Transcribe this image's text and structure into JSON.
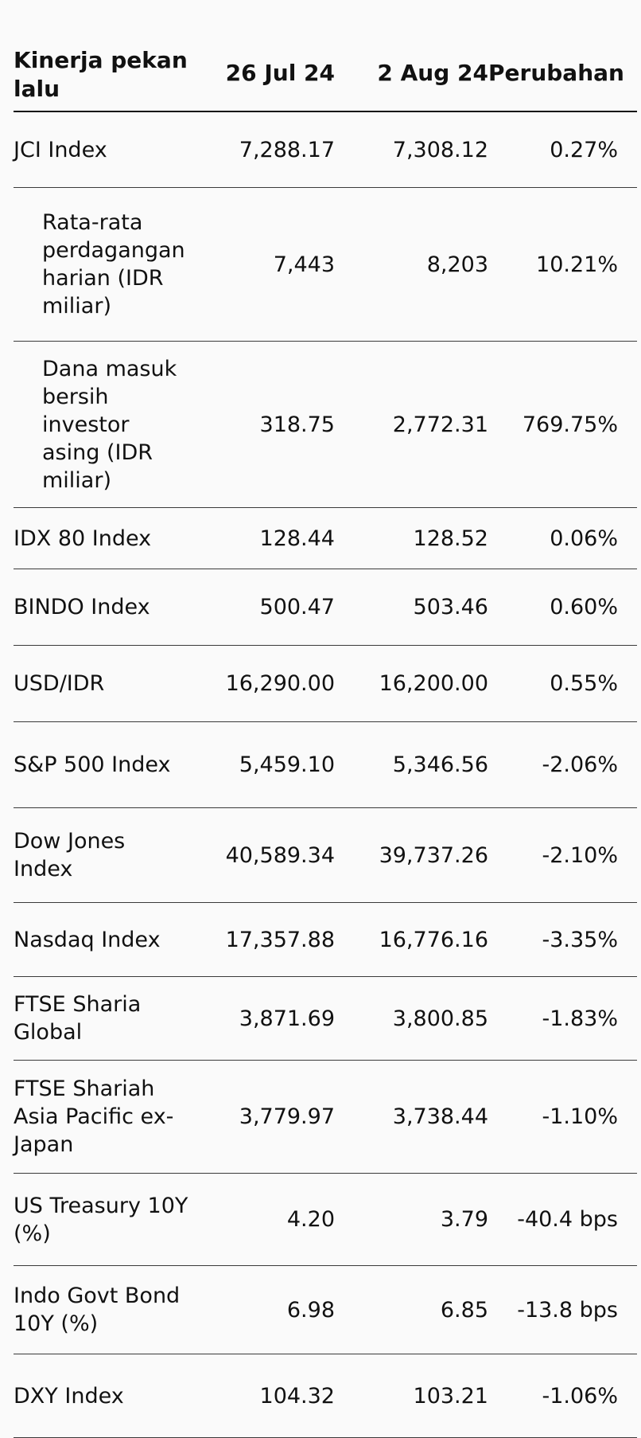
{
  "table": {
    "headers": {
      "label": "Kinerja pekan lalu",
      "date1": "26 Jul 24",
      "date2": "2 Aug 24",
      "change": "Perubahan"
    },
    "rows": [
      {
        "label": "JCI Index",
        "v1": "7,288.17",
        "v2": "7,308.12",
        "change": "0.27%",
        "indent": false
      },
      {
        "label": "Rata-rata perdagangan harian (IDR miliar)",
        "v1": "7,443",
        "v2": "8,203",
        "change": "10.21%",
        "indent": true
      },
      {
        "label": "Dana masuk bersih investor asing (IDR miliar)",
        "v1": "318.75",
        "v2": "2,772.31",
        "change": "769.75%",
        "indent": true
      },
      {
        "label": "IDX 80 Index",
        "v1": "128.44",
        "v2": "128.52",
        "change": "0.06%",
        "indent": false
      },
      {
        "label": "BINDO Index",
        "v1": "500.47",
        "v2": "503.46",
        "change": "0.60%",
        "indent": false
      },
      {
        "label": "USD/IDR",
        "v1": "16,290.00",
        "v2": "16,200.00",
        "change": "0.55%",
        "indent": false
      },
      {
        "label": "S&P 500 Index",
        "v1": "5,459.10",
        "v2": "5,346.56",
        "change": "-2.06%",
        "indent": false
      },
      {
        "label": "Dow Jones Index",
        "v1": "40,589.34",
        "v2": "39,737.26",
        "change": "-2.10%",
        "indent": false
      },
      {
        "label": "Nasdaq Index",
        "v1": "17,357.88",
        "v2": "16,776.16",
        "change": "-3.35%",
        "indent": false
      },
      {
        "label": "FTSE Sharia Global",
        "v1": "3,871.69",
        "v2": "3,800.85",
        "change": "-1.83%",
        "indent": false
      },
      {
        "label": "FTSE Shariah Asia Pacific ex-Japan",
        "v1": "3,779.97",
        "v2": "3,738.44",
        "change": "-1.10%",
        "indent": false
      },
      {
        "label": "US Treasury 10Y (%)",
        "v1": "4.20",
        "v2": "3.79",
        "change": "-40.4 bps",
        "indent": false
      },
      {
        "label": "Indo Govt Bond 10Y (%)",
        "v1": "6.98",
        "v2": "6.85",
        "change": "-13.8 bps",
        "indent": false
      },
      {
        "label": "DXY Index",
        "v1": "104.32",
        "v2": "103.21",
        "change": "-1.06%",
        "indent": false
      }
    ]
  }
}
